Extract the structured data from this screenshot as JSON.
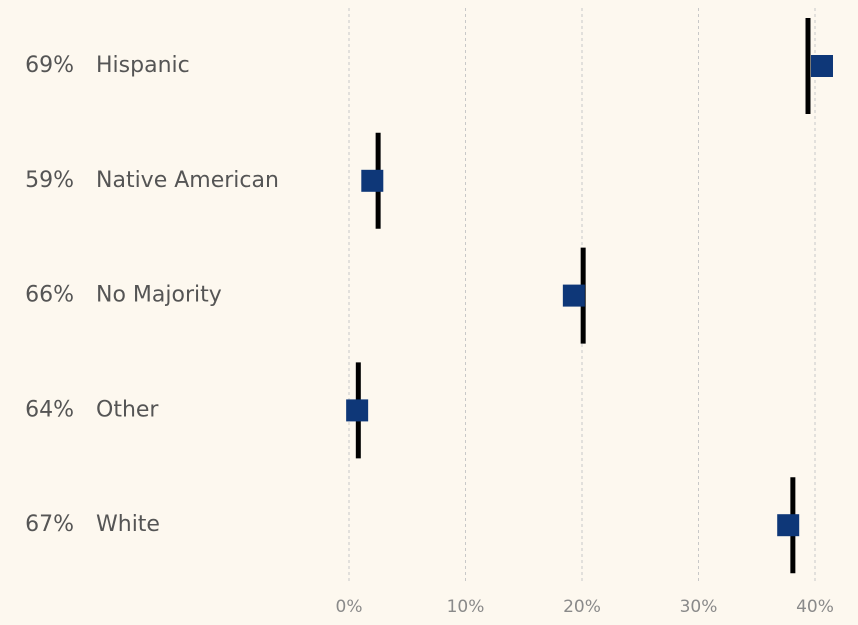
{
  "chart_data": {
    "type": "dot",
    "categories": [
      "Hispanic",
      "Native American",
      "No Majority",
      "Other",
      "White"
    ],
    "values": [
      69,
      59,
      66,
      64,
      67
    ],
    "value_labels": [
      "69%",
      "59%",
      "66%",
      "64%",
      "67%"
    ],
    "series": [
      {
        "color": "#0e3778",
        "values": [
          40.6,
          2.0,
          19.3,
          0.7,
          37.7
        ]
      }
    ],
    "reference": {
      "color": "#000000",
      "values": [
        39.4,
        2.5,
        20.1,
        0.8,
        38.1
      ]
    },
    "xlim": [
      0,
      40
    ],
    "xticks": [
      {
        "value": 0,
        "label": "0%"
      },
      {
        "value": 10,
        "label": "10%"
      },
      {
        "value": 20,
        "label": "20%"
      },
      {
        "value": 30,
        "label": "30%"
      },
      {
        "value": 40,
        "label": "40%"
      }
    ],
    "grid": true
  }
}
